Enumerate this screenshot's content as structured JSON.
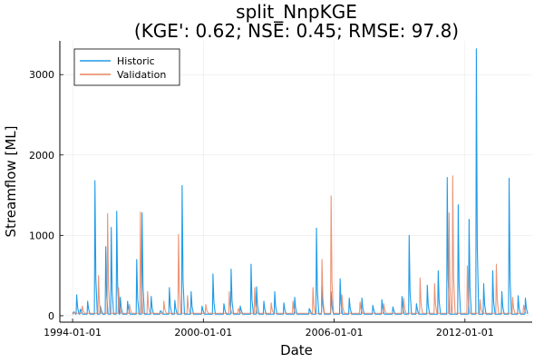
{
  "chart_data": {
    "type": "line",
    "title_line1": "split_NnpKGE",
    "title_line2": "(KGE': 0.62; NSE: 0.45; RMSE: 97.8)",
    "xlabel": "Date",
    "ylabel": "Streamflow [ML]",
    "xlim": [
      "1993-06-01",
      "2015-02-01"
    ],
    "ylim": [
      -80,
      3420
    ],
    "x_ticks": [
      "1994-01-01",
      "2000-01-01",
      "2006-01-01",
      "2012-01-01"
    ],
    "y_ticks": [
      0,
      1000,
      2000,
      3000
    ],
    "grid": true,
    "legend_position": "top-left",
    "series": [
      {
        "name": "Historic",
        "color": "#1f9be8",
        "points": [
          [
            "1994-01-01",
            40
          ],
          [
            "1994-03-01",
            260
          ],
          [
            "1994-05-01",
            80
          ],
          [
            "1994-09-01",
            180
          ],
          [
            "1995-01-01",
            1680
          ],
          [
            "1995-04-01",
            120
          ],
          [
            "1995-07-01",
            860
          ],
          [
            "1995-10-01",
            1100
          ],
          [
            "1996-01-01",
            1300
          ],
          [
            "1996-03-01",
            230
          ],
          [
            "1996-07-01",
            180
          ],
          [
            "1996-12-01",
            700
          ],
          [
            "1997-03-01",
            1280
          ],
          [
            "1997-08-01",
            240
          ],
          [
            "1998-01-01",
            60
          ],
          [
            "1998-06-01",
            350
          ],
          [
            "1998-09-01",
            190
          ],
          [
            "1999-01-01",
            1620
          ],
          [
            "1999-06-01",
            300
          ],
          [
            "1999-12-01",
            120
          ],
          [
            "2000-06-01",
            520
          ],
          [
            "2000-12-01",
            150
          ],
          [
            "2001-04-01",
            580
          ],
          [
            "2001-09-01",
            120
          ],
          [
            "2002-03-01",
            640
          ],
          [
            "2002-06-01",
            360
          ],
          [
            "2002-10-01",
            180
          ],
          [
            "2003-04-01",
            300
          ],
          [
            "2003-09-01",
            160
          ],
          [
            "2004-03-01",
            230
          ],
          [
            "2004-11-01",
            90
          ],
          [
            "2005-03-01",
            1090
          ],
          [
            "2005-06-01",
            360
          ],
          [
            "2005-11-01",
            300
          ],
          [
            "2006-04-01",
            460
          ],
          [
            "2006-09-01",
            220
          ],
          [
            "2007-04-01",
            220
          ],
          [
            "2007-10-01",
            130
          ],
          [
            "2008-03-01",
            200
          ],
          [
            "2008-09-01",
            110
          ],
          [
            "2009-02-01",
            240
          ],
          [
            "2009-06-01",
            1000
          ],
          [
            "2009-10-01",
            150
          ],
          [
            "2010-04-01",
            380
          ],
          [
            "2010-10-01",
            560
          ],
          [
            "2011-03-01",
            1720
          ],
          [
            "2011-09-01",
            1380
          ],
          [
            "2012-03-01",
            1200
          ],
          [
            "2012-07-01",
            3320
          ],
          [
            "2012-11-01",
            400
          ],
          [
            "2013-04-01",
            560
          ],
          [
            "2013-09-01",
            300
          ],
          [
            "2014-01-01",
            1710
          ],
          [
            "2014-06-01",
            250
          ],
          [
            "2014-10-01",
            220
          ]
        ]
      },
      {
        "name": "Validation",
        "color": "#e8825f",
        "points": [
          [
            "1994-01-01",
            20
          ],
          [
            "1994-06-01",
            120
          ],
          [
            "1995-03-01",
            500
          ],
          [
            "1995-08-01",
            1270
          ],
          [
            "1996-02-01",
            350
          ],
          [
            "1996-08-01",
            140
          ],
          [
            "1997-02-01",
            1290
          ],
          [
            "1997-06-01",
            300
          ],
          [
            "1998-03-01",
            180
          ],
          [
            "1998-11-01",
            1010
          ],
          [
            "1999-04-01",
            250
          ],
          [
            "2000-02-01",
            140
          ],
          [
            "2001-03-01",
            300
          ],
          [
            "2001-08-01",
            90
          ],
          [
            "2002-05-01",
            350
          ],
          [
            "2003-02-01",
            160
          ],
          [
            "2004-02-01",
            180
          ],
          [
            "2005-01-01",
            350
          ],
          [
            "2005-06-01",
            700
          ],
          [
            "2005-11-01",
            1490
          ],
          [
            "2006-05-01",
            260
          ],
          [
            "2007-03-01",
            170
          ],
          [
            "2008-04-01",
            150
          ],
          [
            "2009-03-01",
            220
          ],
          [
            "2009-12-01",
            470
          ],
          [
            "2010-08-01",
            400
          ],
          [
            "2011-04-01",
            1280
          ],
          [
            "2011-06-01",
            1740
          ],
          [
            "2012-02-01",
            620
          ],
          [
            "2012-09-01",
            200
          ],
          [
            "2013-06-01",
            640
          ],
          [
            "2014-03-01",
            230
          ],
          [
            "2014-09-01",
            130
          ]
        ]
      }
    ]
  }
}
